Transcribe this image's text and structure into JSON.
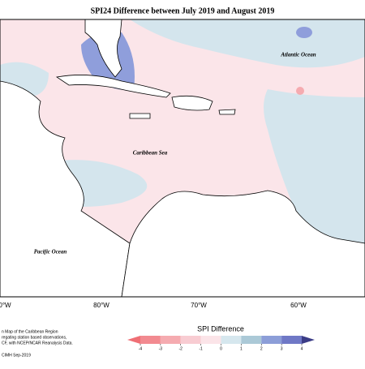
{
  "title": "SPI24 Difference between July 2019 and August 2019",
  "map_labels": [
    "Atlantic Ocean",
    "Caribbean Sea",
    "Pacific Ocean"
  ],
  "longitude_labels": [
    "0°W",
    "80°W",
    "70°W",
    "60°W"
  ],
  "notes": [
    "n Map of the Caribbean Region",
    "regating station based observations,",
    "CF, with NCEP/NCAR Reanalysis Data."
  ],
  "credit": "CIMH Sep-2019",
  "colorbar": {
    "title": "SPI Difference",
    "ticks": [
      -4,
      -3,
      -2,
      -1,
      0,
      1,
      2,
      3,
      4
    ],
    "colors": [
      "#ef6f75",
      "#f28a90",
      "#f5abb0",
      "#f8ccd2",
      "#fbe4e8",
      "#d6e7ee",
      "#abc9d7",
      "#8c9ed8",
      "#6f78c6",
      "#3b3c86"
    ]
  }
}
